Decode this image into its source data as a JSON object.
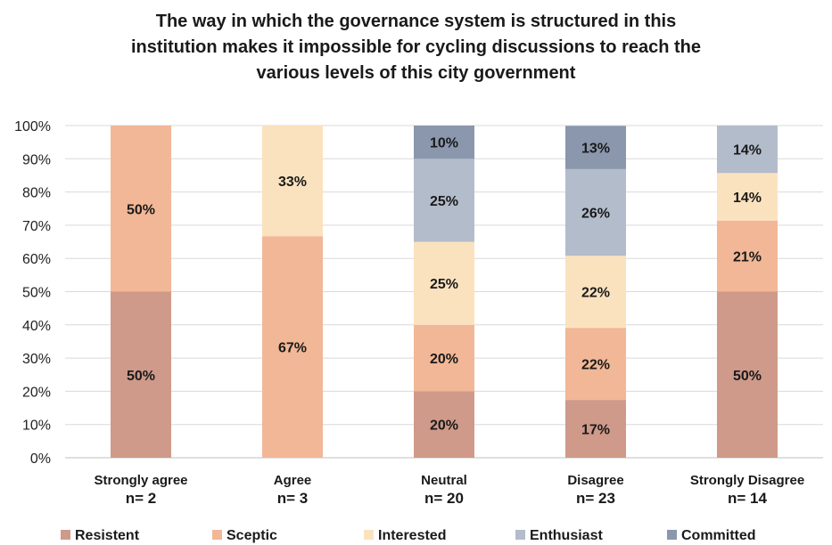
{
  "chart_data": {
    "type": "bar",
    "stacked": true,
    "title_lines": [
      "The way in which the governance system is structured in this",
      "institution makes it impossible for cycling discussions to reach the",
      "various levels of this city government"
    ],
    "categories": [
      {
        "name": "Strongly agree",
        "n": "n= 2"
      },
      {
        "name": "Agree",
        "n": "n= 3"
      },
      {
        "name": "Neutral",
        "n": "n= 20"
      },
      {
        "name": "Disagree",
        "n": "n= 23"
      },
      {
        "name": "Strongly Disagree",
        "n": "n= 14"
      }
    ],
    "series": [
      {
        "name": "Resistent",
        "color": "#cf9a8a",
        "values": [
          50,
          0,
          20,
          17.4,
          50
        ],
        "labels": [
          "50%",
          "",
          "20%",
          "17%",
          "50%"
        ]
      },
      {
        "name": "Sceptic",
        "color": "#f2b796",
        "values": [
          50,
          66.7,
          20,
          21.7,
          21.4
        ],
        "labels": [
          "50%",
          "67%",
          "20%",
          "22%",
          "21%"
        ]
      },
      {
        "name": "Interested",
        "color": "#fbe2bf",
        "values": [
          0,
          33.3,
          25,
          21.7,
          14.3
        ],
        "labels": [
          "",
          "33%",
          "25%",
          "22%",
          "14%"
        ]
      },
      {
        "name": "Enthusiast",
        "color": "#b3bccb",
        "values": [
          0,
          0,
          25,
          26.1,
          14.3
        ],
        "labels": [
          "",
          "",
          "25%",
          "26%",
          "14%"
        ]
      },
      {
        "name": "Committed",
        "color": "#8a97ad",
        "values": [
          0,
          0,
          10,
          13.0,
          0
        ],
        "labels": [
          "",
          "",
          "10%",
          "13%",
          ""
        ]
      }
    ],
    "yticks": [
      "0%",
      "10%",
      "20%",
      "30%",
      "40%",
      "50%",
      "60%",
      "70%",
      "80%",
      "90%",
      "100%"
    ],
    "ylim": [
      0,
      100
    ],
    "grid": true,
    "legend_position": "bottom"
  }
}
